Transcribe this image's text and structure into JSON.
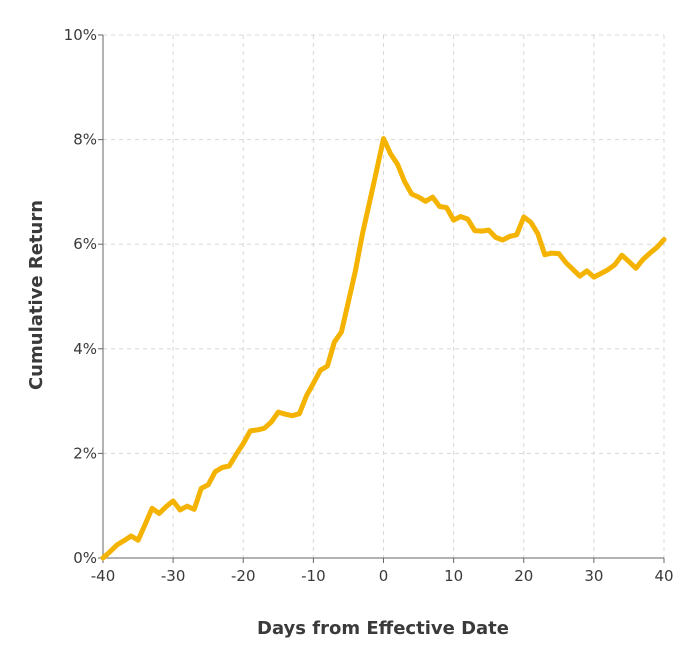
{
  "chart_data": {
    "type": "line",
    "xlabel": "Days from Effective Date",
    "ylabel": "Cumulative Return",
    "xlim": [
      -40,
      40
    ],
    "ylim": [
      0,
      0.1
    ],
    "x_ticks": [
      -40,
      -30,
      -20,
      -10,
      0,
      10,
      20,
      30,
      40
    ],
    "x_tick_labels": [
      "-40",
      "-30",
      "-20",
      "-10",
      "0",
      "10",
      "20",
      "30",
      "40"
    ],
    "y_ticks": [
      0,
      0.02,
      0.04,
      0.06,
      0.08,
      0.1
    ],
    "y_tick_labels": [
      "0%",
      "2%",
      "4%",
      "6%",
      "8%",
      "10%"
    ],
    "grid": true,
    "line_color": "#F5B301",
    "series": [
      {
        "x": [
          -40,
          -39,
          -38,
          -37,
          -36,
          -35,
          -34,
          -33,
          -32,
          -31,
          -30,
          -29,
          -28,
          -27,
          -26,
          -25,
          -24,
          -23,
          -22,
          -21,
          -20,
          -19,
          -18,
          -17,
          -16,
          -15,
          -14,
          -13,
          -12,
          -11,
          -10,
          -9,
          -8,
          -7,
          -6,
          -5,
          -4,
          -3,
          -2,
          -1,
          0,
          1,
          2,
          3,
          4,
          5,
          6,
          7,
          8,
          9,
          10,
          11,
          12,
          13,
          14,
          15,
          16,
          17,
          18,
          19,
          20,
          21,
          22,
          23,
          24,
          25,
          26,
          27,
          28,
          29,
          30,
          31,
          32,
          33,
          34,
          35,
          36,
          37,
          38,
          39,
          40
        ],
        "y": [
          0.0,
          0.0012,
          0.0025,
          0.0033,
          0.0042,
          0.0034,
          0.0064,
          0.0095,
          0.0085,
          0.0098,
          0.0109,
          0.0092,
          0.0099,
          0.0093,
          0.0133,
          0.014,
          0.0165,
          0.0173,
          0.0176,
          0.0198,
          0.0219,
          0.0243,
          0.0245,
          0.0248,
          0.026,
          0.0279,
          0.0275,
          0.0272,
          0.0276,
          0.031,
          0.0334,
          0.0359,
          0.0367,
          0.0413,
          0.0432,
          0.049,
          0.055,
          0.062,
          0.068,
          0.074,
          0.0802,
          0.0773,
          0.0753,
          0.072,
          0.0696,
          0.069,
          0.0682,
          0.069,
          0.0672,
          0.067,
          0.0646,
          0.0653,
          0.0648,
          0.0626,
          0.0625,
          0.0627,
          0.0613,
          0.0608,
          0.0615,
          0.0618,
          0.0652,
          0.0642,
          0.062,
          0.058,
          0.0583,
          0.0582,
          0.0565,
          0.0552,
          0.0539,
          0.0549,
          0.0537,
          0.0544,
          0.0551,
          0.0561,
          0.0579,
          0.0567,
          0.0554,
          0.0571,
          0.0583,
          0.0594,
          0.0609
        ]
      }
    ]
  }
}
